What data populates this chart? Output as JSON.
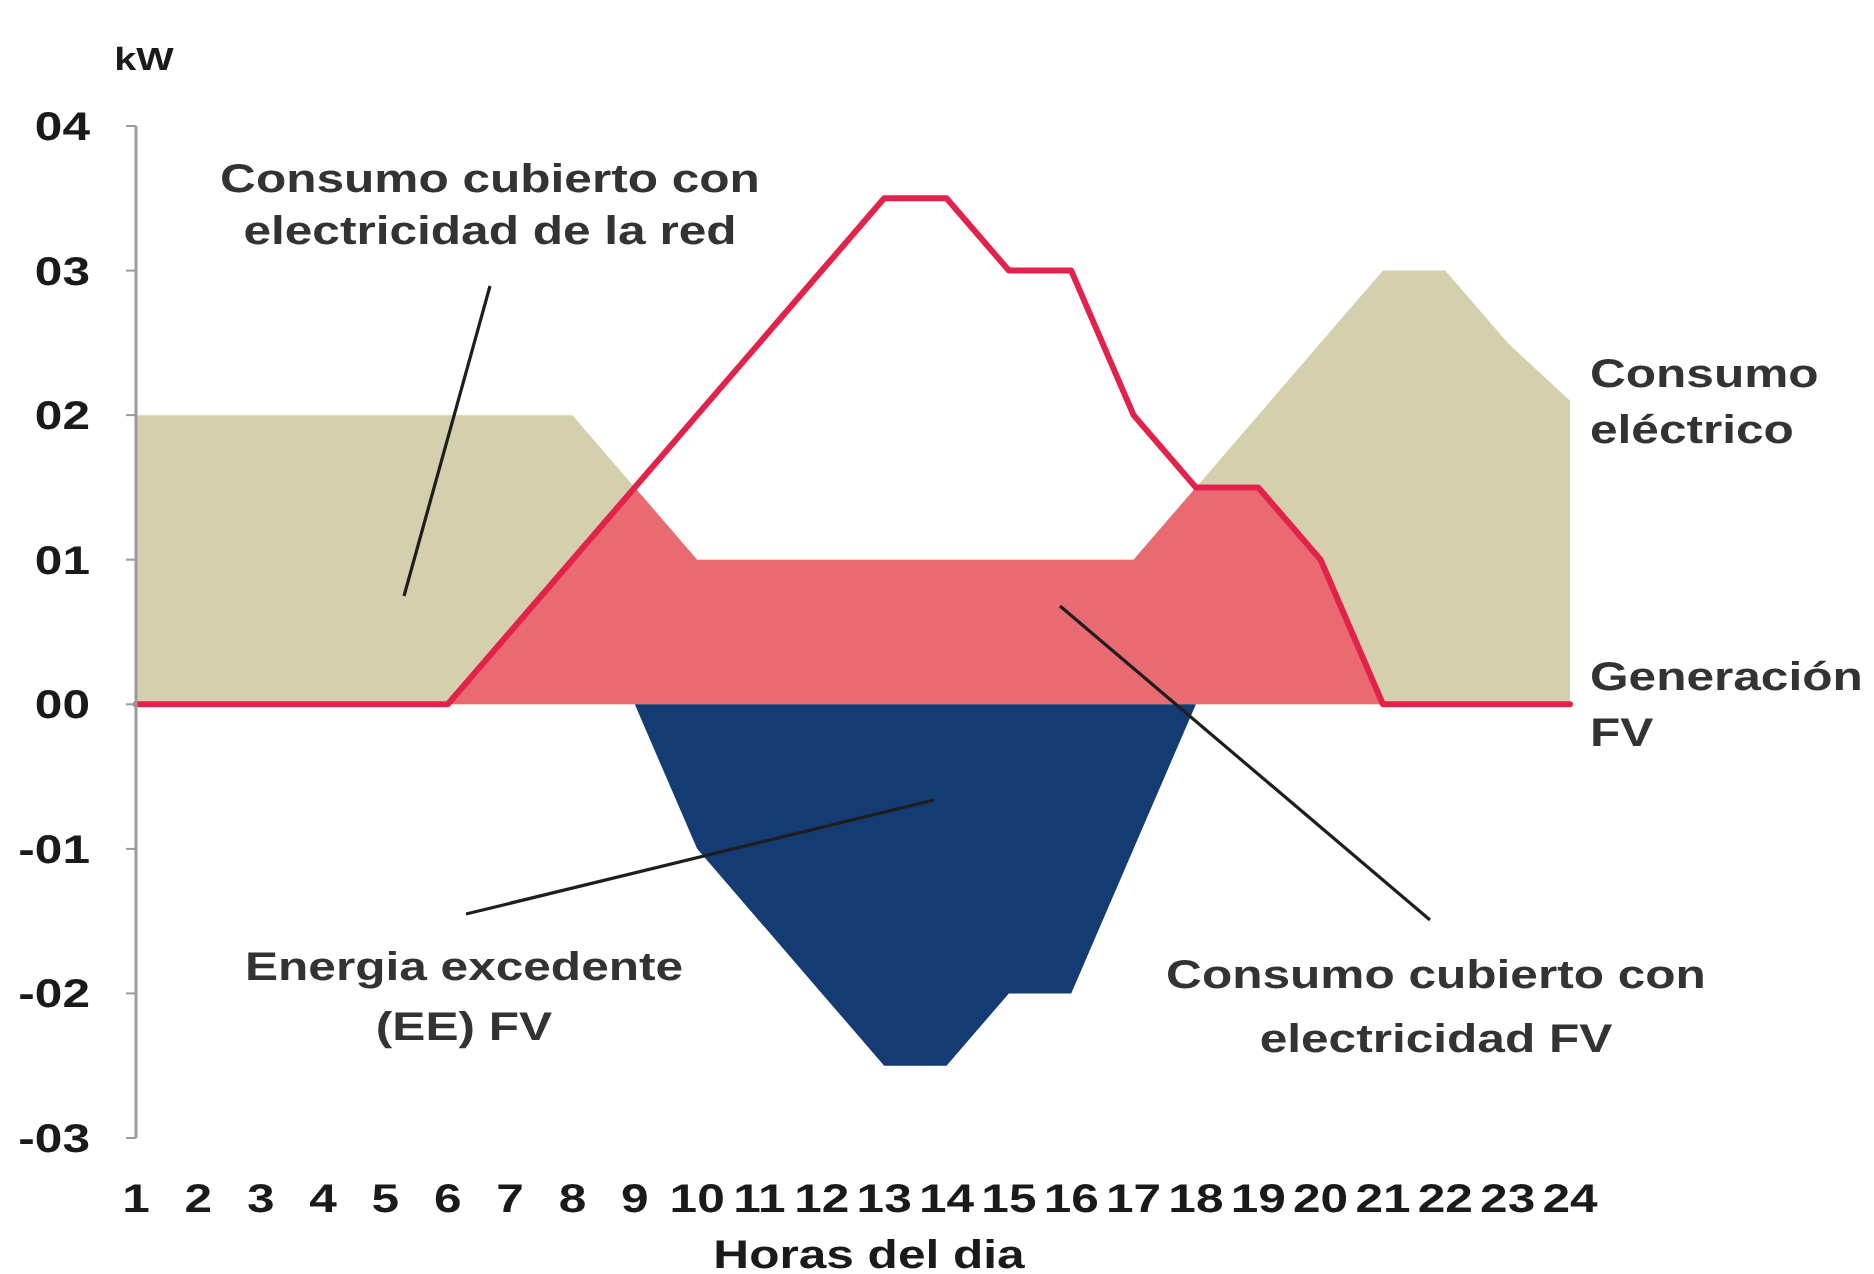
{
  "chart_data": {
    "type": "area",
    "ylabel": "kW",
    "xlabel": "Horas del dia",
    "xlim": [
      1,
      24
    ],
    "xticks": [
      1,
      2,
      3,
      4,
      5,
      6,
      7,
      8,
      9,
      10,
      11,
      12,
      13,
      14,
      15,
      16,
      17,
      18,
      19,
      20,
      21,
      22,
      23,
      24
    ],
    "ylim": [
      -3,
      4
    ],
    "yticks": [
      {
        "value": 4,
        "label": "04"
      },
      {
        "value": 3,
        "label": "03"
      },
      {
        "value": 2,
        "label": "02"
      },
      {
        "value": 1,
        "label": "01"
      },
      {
        "value": 0,
        "label": "00"
      },
      {
        "value": -1,
        "label": "-01"
      },
      {
        "value": -2,
        "label": "-02"
      },
      {
        "value": -3,
        "label": "-03"
      }
    ],
    "series": [
      {
        "name": "Consumo eléctrico",
        "color": "#d4d0ad",
        "x": [
          1,
          2,
          3,
          4,
          5,
          6,
          7,
          8,
          9,
          10,
          11,
          12,
          13,
          14,
          15,
          16,
          17,
          18,
          19,
          20,
          21,
          22,
          23,
          24
        ],
        "values": [
          2,
          2,
          2,
          2,
          2,
          2,
          2,
          2,
          1.5,
          1,
          1,
          1,
          1,
          1,
          1,
          1,
          1,
          1.5,
          2,
          2.5,
          3,
          3,
          2.5,
          2.1
        ]
      },
      {
        "color": "#ea6a72",
        "x": [
          6,
          7,
          8,
          9,
          10,
          11,
          12,
          13,
          14,
          15,
          16,
          17,
          18,
          19,
          20,
          21
        ],
        "values": [
          0,
          0.5,
          1,
          1.5,
          1,
          1,
          1,
          1,
          1,
          1,
          1,
          1,
          1.5,
          1.5,
          1,
          0
        ]
      },
      {
        "color": "#143b72",
        "x": [
          9,
          10,
          11,
          12,
          13,
          14,
          15,
          16,
          17,
          18
        ],
        "values": [
          0,
          -1,
          -1.5,
          -2,
          -2.5,
          -2.5,
          -2,
          -2,
          -1,
          0
        ]
      },
      {
        "name": "Generación FV",
        "type": "line",
        "color": "#e3224b",
        "x": [
          1,
          2,
          3,
          4,
          5,
          6,
          7,
          8,
          9,
          10,
          11,
          12,
          13,
          14,
          15,
          16,
          17,
          18,
          19,
          20,
          21,
          22,
          23,
          24
        ],
        "values": [
          0,
          0,
          0,
          0,
          0,
          0,
          0.5,
          1,
          1.5,
          2,
          2.5,
          3,
          3.5,
          3.5,
          3,
          3,
          2,
          1.5,
          1.5,
          1,
          0,
          0,
          0,
          0
        ]
      }
    ],
    "annotations": [
      "Consumo cubierto con electricidad de la red",
      "Energia excedente (EE) FV",
      "Consumo cubierto con electricidad FV"
    ]
  }
}
